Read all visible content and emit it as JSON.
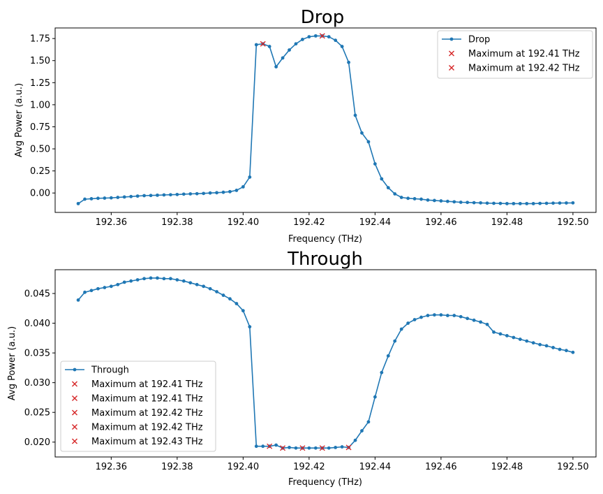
{
  "chart_data": [
    {
      "type": "line",
      "title": "Drop",
      "xlabel": "Frequency (THz)",
      "ylabel": "Avg Power (a.u.)",
      "xlim": [
        192.343,
        192.507
      ],
      "ylim": [
        -0.22,
        1.87
      ],
      "xticks": [
        "192.36",
        "192.38",
        "192.40",
        "192.42",
        "192.44",
        "192.46",
        "192.48",
        "192.50"
      ],
      "xtick_values": [
        192.36,
        192.38,
        192.4,
        192.42,
        192.44,
        192.46,
        192.48,
        192.5
      ],
      "yticks": [
        "0.00",
        "0.25",
        "0.50",
        "0.75",
        "1.00",
        "1.25",
        "1.50",
        "1.75"
      ],
      "ytick_values": [
        0,
        0.25,
        0.5,
        0.75,
        1.0,
        1.25,
        1.5,
        1.75
      ],
      "line_color": "#1f77b4",
      "marker_color": "#d62728",
      "legend_position": "upper right",
      "series": [
        {
          "name": "Drop",
          "x": [
            192.35,
            192.352,
            192.354,
            192.356,
            192.358,
            192.36,
            192.362,
            192.364,
            192.366,
            192.368,
            192.37,
            192.372,
            192.374,
            192.376,
            192.378,
            192.38,
            192.382,
            192.384,
            192.386,
            192.388,
            192.39,
            192.392,
            192.394,
            192.396,
            192.398,
            192.4,
            192.402,
            192.404,
            192.406,
            192.408,
            192.41,
            192.412,
            192.414,
            192.416,
            192.418,
            192.42,
            192.422,
            192.424,
            192.426,
            192.428,
            192.43,
            192.432,
            192.434,
            192.436,
            192.438,
            192.44,
            192.442,
            192.444,
            192.446,
            192.448,
            192.45,
            192.452,
            192.454,
            192.456,
            192.458,
            192.46,
            192.462,
            192.464,
            192.466,
            192.468,
            192.47,
            192.472,
            192.474,
            192.476,
            192.478,
            192.48,
            192.482,
            192.484,
            192.486,
            192.488,
            192.49,
            192.492,
            192.494,
            192.496,
            192.498,
            192.5
          ],
          "y": [
            -0.12,
            -0.07,
            -0.065,
            -0.06,
            -0.058,
            -0.055,
            -0.05,
            -0.045,
            -0.04,
            -0.035,
            -0.03,
            -0.028,
            -0.025,
            -0.022,
            -0.02,
            -0.017,
            -0.013,
            -0.01,
            -0.008,
            -0.005,
            0.0,
            0.003,
            0.008,
            0.015,
            0.03,
            0.07,
            0.18,
            1.68,
            1.69,
            1.66,
            1.43,
            1.53,
            1.62,
            1.69,
            1.74,
            1.77,
            1.78,
            1.78,
            1.77,
            1.73,
            1.66,
            1.48,
            0.88,
            0.68,
            0.58,
            0.33,
            0.16,
            0.06,
            -0.01,
            -0.05,
            -0.06,
            -0.065,
            -0.07,
            -0.08,
            -0.085,
            -0.09,
            -0.095,
            -0.1,
            -0.105,
            -0.107,
            -0.11,
            -0.112,
            -0.115,
            -0.117,
            -0.118,
            -0.12,
            -0.12,
            -0.12,
            -0.12,
            -0.12,
            -0.118,
            -0.117,
            -0.115,
            -0.114,
            -0.113,
            -0.112
          ]
        }
      ],
      "maxima": [
        {
          "name": "Maximum at 192.41 THz",
          "x": 192.406,
          "y": 1.69
        },
        {
          "name": "Maximum at 192.42 THz",
          "x": 192.424,
          "y": 1.78
        }
      ]
    },
    {
      "type": "line",
      "title": "Through",
      "xlabel": "Frequency (THz)",
      "ylabel": "Avg Power (a.u.)",
      "xlim": [
        192.343,
        192.507
      ],
      "ylim": [
        0.0175,
        0.049
      ],
      "xticks": [
        "192.36",
        "192.38",
        "192.40",
        "192.42",
        "192.44",
        "192.46",
        "192.48",
        "192.50"
      ],
      "xtick_values": [
        192.36,
        192.38,
        192.4,
        192.42,
        192.44,
        192.46,
        192.48,
        192.5
      ],
      "yticks": [
        "0.020",
        "0.025",
        "0.030",
        "0.035",
        "0.040",
        "0.045"
      ],
      "ytick_values": [
        0.02,
        0.025,
        0.03,
        0.035,
        0.04,
        0.045
      ],
      "line_color": "#1f77b4",
      "marker_color": "#d62728",
      "legend_position": "lower left",
      "series": [
        {
          "name": "Through",
          "x": [
            192.35,
            192.352,
            192.354,
            192.356,
            192.358,
            192.36,
            192.362,
            192.364,
            192.366,
            192.368,
            192.37,
            192.372,
            192.374,
            192.376,
            192.378,
            192.38,
            192.382,
            192.384,
            192.386,
            192.388,
            192.39,
            192.392,
            192.394,
            192.396,
            192.398,
            192.4,
            192.402,
            192.404,
            192.406,
            192.408,
            192.41,
            192.412,
            192.414,
            192.416,
            192.418,
            192.42,
            192.422,
            192.424,
            192.426,
            192.428,
            192.43,
            192.432,
            192.434,
            192.436,
            192.438,
            192.44,
            192.442,
            192.444,
            192.446,
            192.448,
            192.45,
            192.452,
            192.454,
            192.456,
            192.458,
            192.46,
            192.462,
            192.464,
            192.466,
            192.468,
            192.47,
            192.472,
            192.474,
            192.476,
            192.478,
            192.48,
            192.482,
            192.484,
            192.486,
            192.488,
            192.49,
            192.492,
            192.494,
            192.496,
            192.498,
            192.5
          ],
          "y": [
            0.0439,
            0.0452,
            0.0455,
            0.0458,
            0.046,
            0.0462,
            0.0465,
            0.0469,
            0.0471,
            0.0473,
            0.0475,
            0.0476,
            0.0476,
            0.0475,
            0.0475,
            0.0473,
            0.0471,
            0.0468,
            0.0465,
            0.0462,
            0.0458,
            0.0453,
            0.0447,
            0.0441,
            0.0433,
            0.0421,
            0.0394,
            0.0193,
            0.0193,
            0.0193,
            0.0195,
            0.019,
            0.0191,
            0.019,
            0.019,
            0.019,
            0.019,
            0.019,
            0.019,
            0.0191,
            0.0192,
            0.0191,
            0.0203,
            0.0219,
            0.0234,
            0.0276,
            0.0317,
            0.0345,
            0.037,
            0.039,
            0.04,
            0.0406,
            0.041,
            0.0413,
            0.0414,
            0.0414,
            0.0413,
            0.0413,
            0.0411,
            0.0408,
            0.0405,
            0.0402,
            0.0398,
            0.0385,
            0.0382,
            0.0379,
            0.0376,
            0.0373,
            0.037,
            0.0367,
            0.0364,
            0.0362,
            0.0359,
            0.0356,
            0.0354,
            0.0351
          ]
        }
      ],
      "maxima": [
        {
          "name": "Maximum at 192.41 THz",
          "x": 192.408,
          "y": 0.0193
        },
        {
          "name": "Maximum at 192.41 THz",
          "x": 192.412,
          "y": 0.019
        },
        {
          "name": "Maximum at 192.42 THz",
          "x": 192.418,
          "y": 0.019
        },
        {
          "name": "Maximum at 192.42 THz",
          "x": 192.424,
          "y": 0.019
        },
        {
          "name": "Maximum at 192.43 THz",
          "x": 192.432,
          "y": 0.0191
        }
      ]
    }
  ]
}
